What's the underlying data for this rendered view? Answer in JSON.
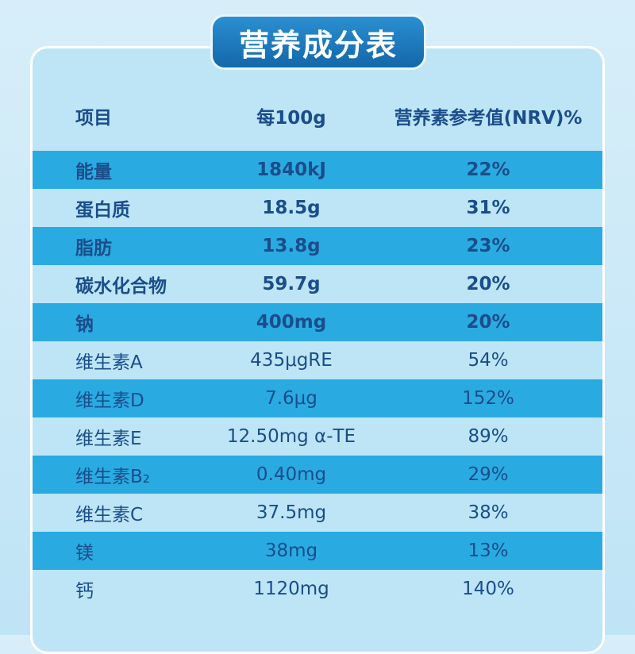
{
  "title": "营养成分表",
  "table": {
    "header": [
      "项目",
      "每100g",
      "营养素参考值(NRV)%"
    ],
    "rows": [
      [
        "能量",
        "1840kJ",
        "22%"
      ],
      [
        "蛋白质",
        "18.5g",
        "31%"
      ],
      [
        "脂肪",
        "13.8g",
        "23%"
      ],
      [
        "碳水化合物",
        "59.7g",
        "20%"
      ],
      [
        "钠",
        "400mg",
        "20%"
      ],
      [
        "维生素A",
        "435μgRE",
        "54%"
      ],
      [
        "维生素D",
        "7.6μg",
        "152%"
      ],
      [
        "维生素E",
        "12.50mg α-TE",
        "89%"
      ],
      [
        "维生素B₂",
        "0.40mg",
        "29%"
      ],
      [
        "维生素C",
        "37.5mg",
        "38%"
      ],
      [
        "镁",
        "38mg",
        "13%"
      ],
      [
        "钙",
        "1120mg",
        "140%"
      ]
    ]
  }
}
